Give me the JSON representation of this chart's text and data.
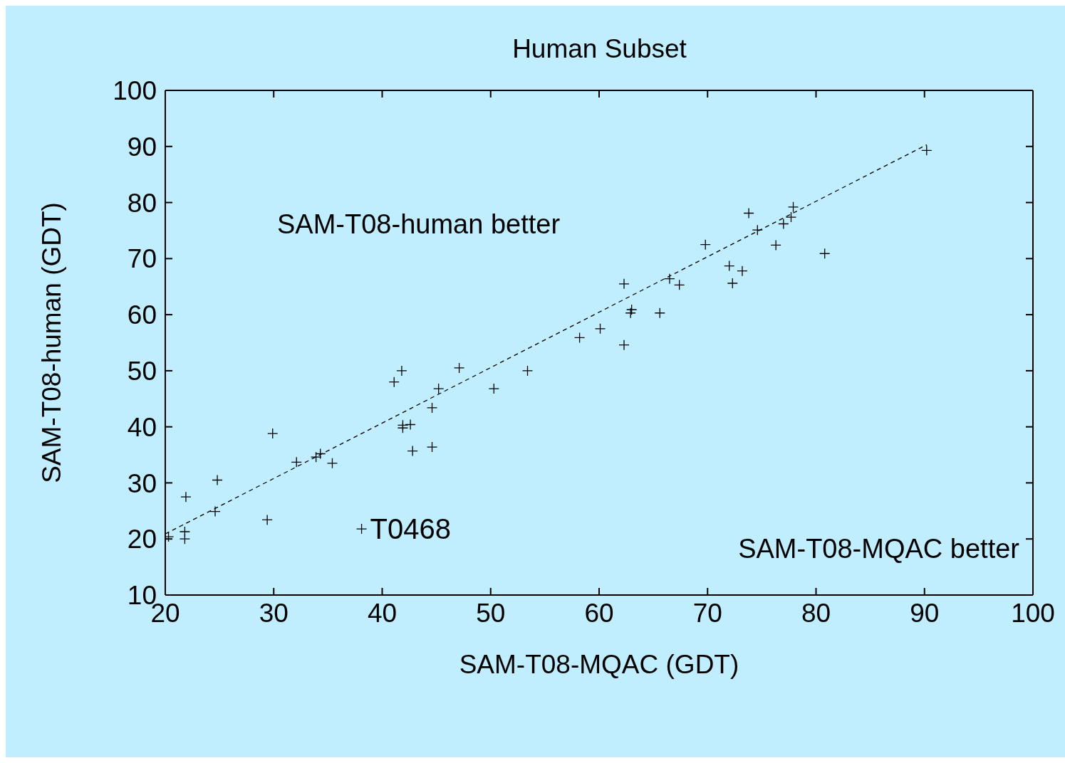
{
  "chart_data": {
    "type": "scatter",
    "title": "Human Subset",
    "xlabel": "SAM-T08-MQAC (GDT)",
    "ylabel": "SAM-T08-human (GDT)",
    "xlim": [
      20,
      100
    ],
    "xticks": [
      20,
      30,
      40,
      50,
      60,
      70,
      80,
      90,
      100
    ],
    "ylim": [
      10,
      100
    ],
    "yticks": [
      10,
      20,
      30,
      40,
      50,
      60,
      70,
      80,
      90,
      100
    ],
    "annotations": [
      "SAM-T08-human better",
      "SAM-T08-MQAC better",
      {
        "text": "T0468",
        "x": 38.1,
        "y": 21.8
      }
    ],
    "series": [
      {
        "color": "#000000",
        "marker": "cross",
        "x": [
          20.3,
          21.9,
          21.8,
          21.8,
          24.6,
          24.8,
          29.4,
          29.9,
          32.1,
          33.9,
          34.3,
          35.4,
          38.1,
          41.1,
          41.8,
          41.9,
          41.9,
          42.6,
          42.8,
          44.6,
          44.6,
          45.2,
          47.1,
          50.3,
          53.4,
          58.2,
          60.1,
          62.3,
          62.3,
          62.9,
          63.0,
          65.6,
          66.5,
          67.4,
          69.8,
          72.0,
          72.3,
          73.2,
          73.8,
          74.6,
          76.3,
          77.0,
          77.7,
          77.9,
          80.8,
          90.2
        ],
        "values": [
          20.4,
          27.5,
          21.3,
          20.0,
          24.9,
          30.5,
          23.4,
          38.8,
          33.7,
          34.6,
          35.2,
          33.5,
          21.8,
          48.0,
          50.0,
          39.8,
          40.3,
          40.4,
          35.7,
          36.4,
          43.4,
          46.8,
          50.5,
          46.8,
          50.0,
          55.9,
          57.5,
          54.6,
          65.5,
          60.3,
          60.9,
          60.3,
          66.4,
          65.3,
          72.5,
          68.7,
          65.6,
          67.8,
          78.1,
          75.1,
          72.4,
          76.2,
          77.4,
          79.2,
          70.9,
          89.3
        ]
      },
      {
        "type": "line",
        "color": "#000000",
        "marker": "none",
        "line_style": "dashed",
        "x": [
          20,
          90.2
        ],
        "values": [
          20.9,
          90.3
        ]
      }
    ]
  }
}
